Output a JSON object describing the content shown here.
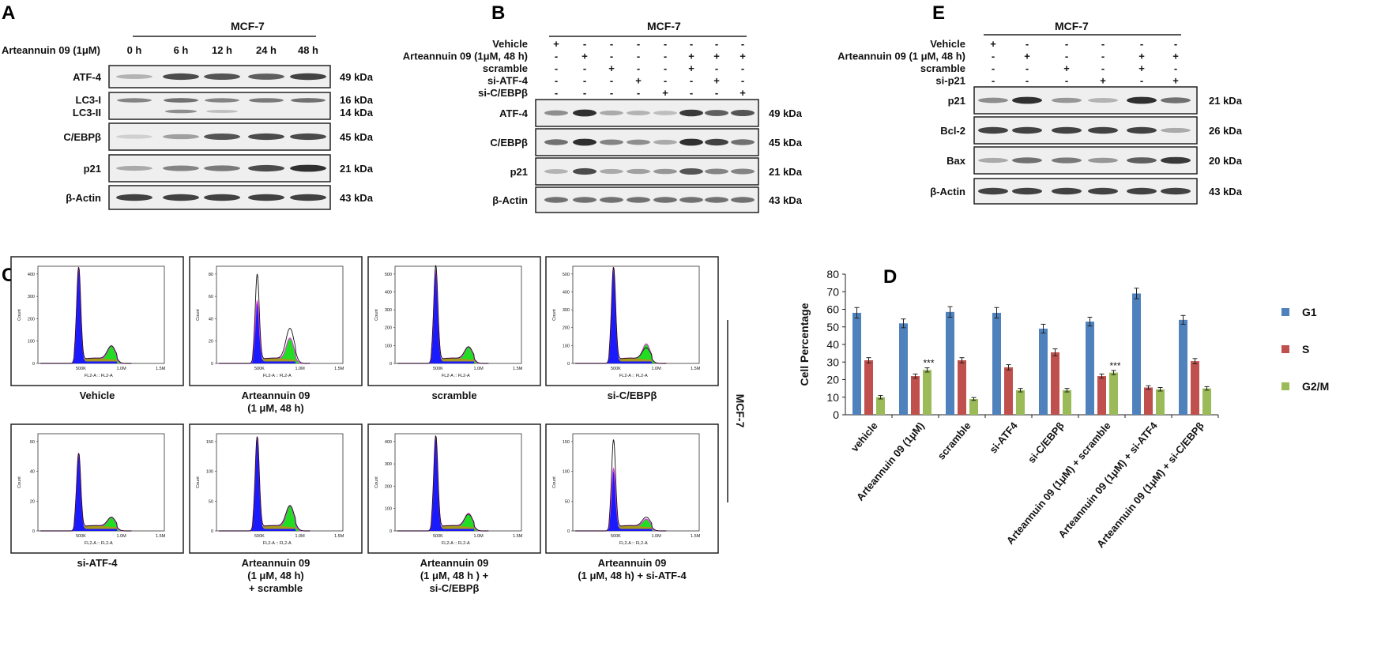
{
  "panel_letters": [
    "A",
    "B",
    "C",
    "D",
    "E"
  ],
  "colors": {
    "g1": "#4f81bd",
    "s": "#c0504d",
    "g2m": "#9bbb59",
    "blot_bg": "#efefef",
    "band": "#1a1a1a",
    "hist_blue": "#1a1aff",
    "hist_olive": "#a59a1a",
    "hist_green": "#22dd22",
    "hist_magenta": "#e040e0"
  },
  "panel_a": {
    "cell_line": "MCF-7",
    "treatment_label": "Arteannuin 09 (1μM)",
    "timepoints": [
      "0 h",
      "6 h",
      "12 h",
      "24 h",
      "48 h"
    ],
    "blots": [
      {
        "name": "ATF-4",
        "kda": "49 kDa",
        "intensity": [
          0.25,
          0.8,
          0.75,
          0.7,
          0.85
        ]
      },
      {
        "name": "LC3-I",
        "name2": "LC3-II",
        "kda": "16 kDa",
        "kda2": "14 kDa",
        "intensity": [
          0.5,
          0.6,
          0.5,
          0.55,
          0.6
        ],
        "intensity2": [
          0.0,
          0.45,
          0.2,
          0.0,
          0.0
        ]
      },
      {
        "name": "C/EBPβ",
        "kda": "45 kDa",
        "intensity": [
          0.1,
          0.35,
          0.75,
          0.8,
          0.8
        ]
      },
      {
        "name": "p21",
        "kda": "21 kDa",
        "intensity": [
          0.3,
          0.5,
          0.55,
          0.8,
          0.95
        ]
      },
      {
        "name": "β-Actin",
        "kda": "43 kDa",
        "intensity": [
          0.85,
          0.85,
          0.85,
          0.85,
          0.85
        ]
      }
    ]
  },
  "panel_b": {
    "cell_line": "MCF-7",
    "conditions": [
      {
        "label": "Vehicle",
        "signs": [
          "+",
          "-",
          "-",
          "-",
          "-",
          "-",
          "-",
          "-"
        ]
      },
      {
        "label": "Arteannuin 09 (1μM, 48 h)",
        "signs": [
          "-",
          "+",
          "-",
          "-",
          "-",
          "+",
          "+",
          "+"
        ]
      },
      {
        "label": "scramble",
        "signs": [
          "-",
          "-",
          "+",
          "-",
          "-",
          "+",
          "-",
          "-"
        ]
      },
      {
        "label": "si-ATF-4",
        "signs": [
          "-",
          "-",
          "-",
          "+",
          "-",
          "-",
          "+",
          "-"
        ]
      },
      {
        "label": "si-C/EBPβ",
        "signs": [
          "-",
          "-",
          "-",
          "-",
          "+",
          "-",
          "-",
          "+"
        ]
      }
    ],
    "blots": [
      {
        "name": "ATF-4",
        "kda": "49 kDa",
        "intensity": [
          0.45,
          0.95,
          0.3,
          0.25,
          0.2,
          0.9,
          0.7,
          0.75
        ]
      },
      {
        "name": "C/EBPβ",
        "kda": "45 kDa",
        "intensity": [
          0.6,
          0.95,
          0.5,
          0.45,
          0.3,
          0.95,
          0.85,
          0.6
        ]
      },
      {
        "name": "p21",
        "kda": "21 kDa",
        "intensity": [
          0.25,
          0.8,
          0.3,
          0.35,
          0.4,
          0.75,
          0.5,
          0.5
        ]
      },
      {
        "name": "β-Actin",
        "kda": "43 kDa",
        "intensity": [
          0.6,
          0.6,
          0.6,
          0.6,
          0.6,
          0.6,
          0.6,
          0.6
        ]
      }
    ]
  },
  "panel_e": {
    "cell_line": "MCF-7",
    "conditions": [
      {
        "label": "Vehicle",
        "signs": [
          "+",
          "-",
          "-",
          "-",
          "-",
          "-"
        ]
      },
      {
        "label": "Arteannuin 09 (1 μM, 48 h)",
        "signs": [
          "-",
          "+",
          "-",
          "-",
          "+",
          "+"
        ]
      },
      {
        "label": "scramble",
        "signs": [
          "-",
          "-",
          "+",
          "-",
          "+",
          "-"
        ]
      },
      {
        "label": "si-p21",
        "signs": [
          "-",
          "-",
          "-",
          "+",
          "-",
          "+"
        ]
      }
    ],
    "blots": [
      {
        "name": "p21",
        "kda": "21 kDa",
        "intensity": [
          0.45,
          0.95,
          0.4,
          0.25,
          0.95,
          0.6
        ]
      },
      {
        "name": "Bcl-2",
        "kda": "26 kDa",
        "intensity": [
          0.85,
          0.85,
          0.85,
          0.85,
          0.85,
          0.3
        ]
      },
      {
        "name": "Bax",
        "kda": "20 kDa",
        "intensity": [
          0.3,
          0.6,
          0.55,
          0.4,
          0.7,
          0.9
        ]
      },
      {
        "name": "β-Actin",
        "kda": "43 kDa",
        "intensity": [
          0.85,
          0.85,
          0.85,
          0.85,
          0.85,
          0.85
        ]
      }
    ]
  },
  "panel_c": {
    "side_label": "MCF-7",
    "x_ticks": [
      "500K",
      "1.0M",
      "1.5M"
    ],
    "x_axis_label": "FL2-A :: FL2-A",
    "y_axis_label": "Count",
    "histograms": [
      {
        "caption": [
          "Vehicle"
        ],
        "y_ticks": [
          "0",
          "100",
          "200",
          "300",
          "400"
        ],
        "peak": 0.95,
        "g2": 0.14,
        "black_peak": 0.95,
        "black_g2": 0.14
      },
      {
        "caption": [
          "Arteannuin 09",
          "(1 μM, 48 h)"
        ],
        "y_ticks": [
          "0",
          "20",
          "40",
          "60",
          "80"
        ],
        "peak": 0.6,
        "g2": 0.22,
        "black_peak": 0.88,
        "black_g2": 0.32
      },
      {
        "caption": [
          "scramble"
        ],
        "y_ticks": [
          "0",
          "100",
          "200",
          "300",
          "400",
          "500"
        ],
        "peak": 0.93,
        "g2": 0.13,
        "black_peak": 0.97,
        "black_g2": 0.13
      },
      {
        "caption": [
          "si-C/EBPβ"
        ],
        "y_ticks": [
          "0",
          "100",
          "200",
          "300",
          "400",
          "500"
        ],
        "peak": 0.95,
        "g2": 0.16,
        "black_peak": 0.95,
        "black_g2": 0.12
      },
      {
        "caption": [
          "si-ATF-4"
        ],
        "y_ticks": [
          "0",
          "20",
          "40",
          "60"
        ],
        "peak": 0.76,
        "g2": 0.1,
        "black_peak": 0.76,
        "black_g2": 0.1
      },
      {
        "caption": [
          "Arteannuin 09",
          "(1 μM, 48 h)",
          "+ scramble"
        ],
        "y_ticks": [
          "0",
          "50",
          "100",
          "150"
        ],
        "peak": 0.93,
        "g2": 0.22,
        "black_peak": 0.93,
        "black_g2": 0.22
      },
      {
        "caption": [
          "Arteannuin 09",
          "(1 μM, 48 h ) +",
          "si-C/EBPβ"
        ],
        "y_ticks": [
          "0",
          "100",
          "200",
          "300",
          "400"
        ],
        "peak": 0.94,
        "g2": 0.14,
        "black_peak": 0.94,
        "black_g2": 0.13
      },
      {
        "caption": [
          "Arteannuin 09",
          "(1 μM, 48 h) + si-ATF-4"
        ],
        "y_ticks": [
          "0",
          "50",
          "100",
          "150"
        ],
        "peak": 0.6,
        "g2": 0.08,
        "black_peak": 0.9,
        "black_g2": 0.1
      }
    ]
  },
  "chart_data": {
    "type": "bar",
    "title": "",
    "xlabel": "",
    "ylabel": "Cell Percentage",
    "ylim": [
      0,
      80
    ],
    "y_ticks": [
      0,
      10,
      20,
      30,
      40,
      50,
      60,
      70,
      80
    ],
    "categories": [
      "vehicle",
      "Arteannuin 09 (1μM)",
      "scramble",
      "si-ATF4",
      "si-C/EBPβ",
      "Arteannuin 09 (1μM) + scramble",
      "Arteannuin 09 (1μM) + si-ATF4",
      "Arteannuin 09 (1μM) + si-C/EBPβ"
    ],
    "series": [
      {
        "name": "G1",
        "color": "#4f81bd",
        "values": [
          58,
          52,
          58.5,
          58,
          49,
          53,
          69,
          54
        ],
        "errors": [
          3,
          2.5,
          3,
          3,
          2.5,
          2.5,
          3,
          2.5
        ]
      },
      {
        "name": "S",
        "color": "#c0504d",
        "values": [
          31,
          22,
          31,
          27,
          35.5,
          22,
          15.5,
          30.5
        ],
        "errors": [
          1.5,
          1.2,
          1.5,
          1.5,
          2,
          1.2,
          1,
          1.5
        ]
      },
      {
        "name": "G2/M",
        "color": "#9bbb59",
        "values": [
          10,
          25.5,
          9,
          14,
          14,
          24,
          14.5,
          15
        ],
        "errors": [
          1,
          1.2,
          0.8,
          1,
          1,
          1.2,
          1,
          1
        ]
      }
    ],
    "annotations": [
      {
        "category": 1,
        "series": 2,
        "text": "***"
      },
      {
        "category": 5,
        "series": 2,
        "text": "***"
      }
    ],
    "legend_position": "right"
  }
}
